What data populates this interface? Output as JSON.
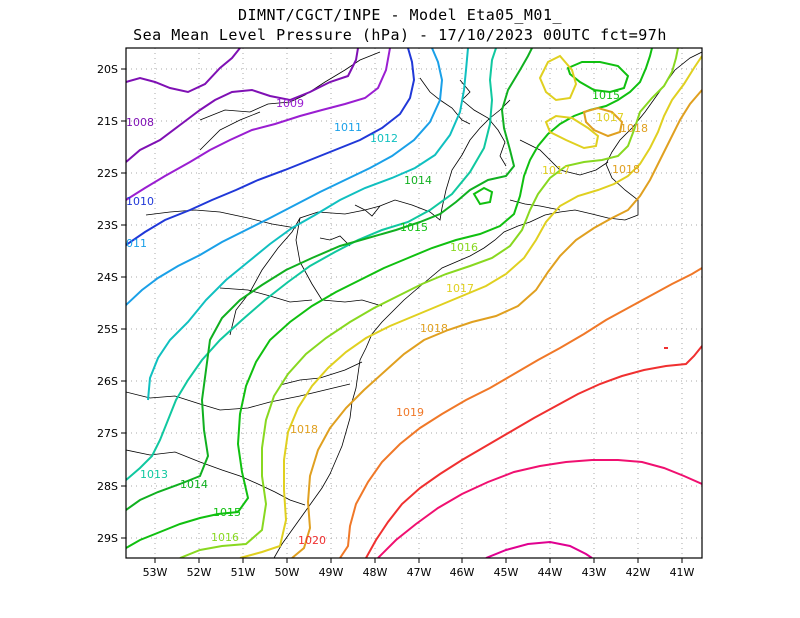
{
  "title": {
    "line1": "DIMNT/CGCT/INPE -  Model Eta05_M01_",
    "line2": "Sea Mean Level Pressure (hPa) - 17/10/2023 00UTC fct=97h"
  },
  "axes": {
    "lon_labels": [
      "53W",
      "52W",
      "51W",
      "50W",
      "49W",
      "48W",
      "47W",
      "46W",
      "45W",
      "44W",
      "43W",
      "42W",
      "41W"
    ],
    "lat_labels": [
      "20S",
      "21S",
      "22S",
      "23S",
      "24S",
      "25S",
      "26S",
      "27S",
      "28S",
      "29S"
    ]
  },
  "isobars": [
    {
      "label": "1008",
      "color": "#7f10b4"
    },
    {
      "label": "1009",
      "color": "#9a1ed1"
    },
    {
      "label": "1010",
      "color": "#2038d8"
    },
    {
      "label": "1011",
      "color": "#1aa0e8"
    },
    {
      "label": "1012",
      "color": "#10c0c0"
    },
    {
      "label": "1013",
      "color": "#10c8a0"
    },
    {
      "label": "1014",
      "color": "#10b020"
    },
    {
      "label": "1015",
      "color": "#10c010"
    },
    {
      "label": "1016",
      "color": "#88d820"
    },
    {
      "label": "1017",
      "color": "#e0d020"
    },
    {
      "label": "1018",
      "color": "#e0a020"
    },
    {
      "label": "1019",
      "color": "#f07828"
    },
    {
      "label": "1020",
      "color": "#f03030"
    },
    {
      "label": "1021",
      "color": "#f01070"
    },
    {
      "label": "1022",
      "color": "#e00090"
    }
  ],
  "map_labels": [
    {
      "text": "1008",
      "color": "#7f10b4"
    },
    {
      "text": "1009",
      "color": "#9a1ed1"
    },
    {
      "text": "1010",
      "color": "#2038d8"
    },
    {
      "text": "011",
      "color": "#1aa0e8"
    },
    {
      "text": "1011",
      "color": "#1aa0e8"
    },
    {
      "text": "1012",
      "color": "#10c0c0"
    },
    {
      "text": "1013",
      "color": "#10c8a0"
    },
    {
      "text": "1014",
      "color": "#10b020"
    },
    {
      "text": "1014",
      "color": "#10b020"
    },
    {
      "text": "1015",
      "color": "#10c010"
    },
    {
      "text": "1015",
      "color": "#10c010"
    },
    {
      "text": "1015",
      "color": "#10c010"
    },
    {
      "text": "1016",
      "color": "#88d820"
    },
    {
      "text": "1016",
      "color": "#88d820"
    },
    {
      "text": "1017",
      "color": "#e0d020"
    },
    {
      "text": "1017",
      "color": "#e0d020"
    },
    {
      "text": "1017",
      "color": "#e0d020"
    },
    {
      "text": "1018",
      "color": "#e0a020"
    },
    {
      "text": "1018",
      "color": "#e0a020"
    },
    {
      "text": "1018",
      "color": "#e0a020"
    },
    {
      "text": "1018",
      "color": "#e0a020"
    },
    {
      "text": "1019",
      "color": "#f07828"
    },
    {
      "text": "1020",
      "color": "#f03030"
    }
  ]
}
